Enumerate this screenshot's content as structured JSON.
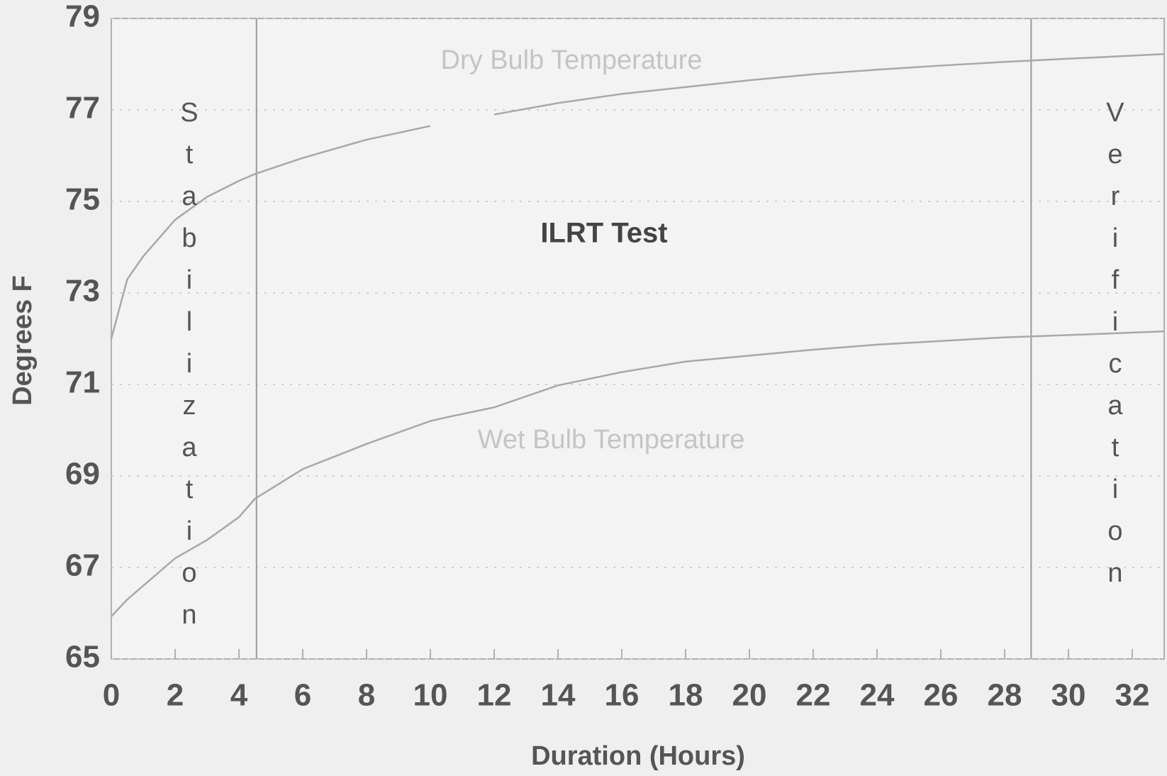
{
  "chart_data": {
    "type": "line",
    "x_label": "Duration (Hours)",
    "y_label": "Degrees F",
    "x": [
      0,
      0.5,
      1,
      2,
      3,
      4,
      4.5,
      6,
      8,
      10,
      10.5,
      12,
      14,
      16,
      18,
      20,
      22,
      24,
      26,
      28,
      30,
      33
    ],
    "series": [
      {
        "name": "Dry Bulb Temperature",
        "color": "#a8a8a8",
        "values": [
          72,
          73.3,
          73.8,
          74.6,
          75.1,
          75.45,
          75.6,
          75.95,
          76.35,
          76.65,
          null,
          76.9,
          77.15,
          77.35,
          77.5,
          77.65,
          77.78,
          77.88,
          77.97,
          78.05,
          78.12,
          78.22
        ]
      },
      {
        "name": "Wet Bulb Temperature",
        "color": "#a8a8a8",
        "values": [
          65.93,
          66.3,
          66.6,
          67.2,
          67.6,
          68.1,
          68.5,
          69.15,
          69.7,
          70.2,
          70.28,
          70.5,
          70.98,
          71.27,
          71.5,
          71.63,
          71.76,
          71.87,
          71.95,
          72.03,
          72.08,
          72.16
        ]
      }
    ],
    "xlim": [
      0,
      33
    ],
    "xticks": [
      0,
      2,
      4,
      6,
      8,
      10,
      12,
      14,
      16,
      18,
      20,
      22,
      24,
      26,
      28,
      30,
      32
    ],
    "ylim": [
      65,
      79
    ],
    "yticks": [
      65,
      67,
      69,
      71,
      73,
      75,
      77,
      79
    ],
    "grid": true,
    "phase_lines": [
      4.55,
      28.83
    ],
    "annotations": [
      "Stabilization",
      "ILRT Test",
      "Verification"
    ]
  }
}
